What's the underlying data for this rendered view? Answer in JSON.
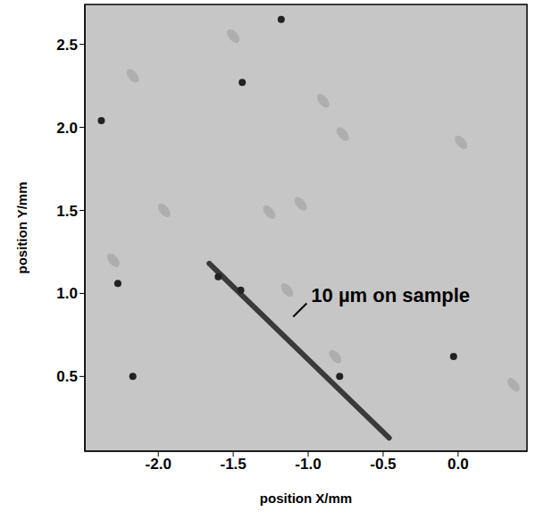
{
  "chart_data": {
    "type": "image",
    "x_label": "position X/mm",
    "y_label": "position Y/mm",
    "color": "#c6c6c6",
    "xlim": [
      -2.49,
      0.46
    ],
    "ylim": [
      0.05,
      2.74
    ],
    "xticks": [
      {
        "value": -2,
        "label": "-2.0"
      },
      {
        "value": -1.5,
        "label": "-1.5"
      },
      {
        "value": -1,
        "label": "-1.0"
      },
      {
        "value": -0.5,
        "label": "-0.5"
      },
      {
        "value": 0,
        "label": "0.0"
      }
    ],
    "yticks": [
      0.5,
      {
        "value": 1,
        "label": "1.0"
      },
      1.5,
      {
        "value": 2,
        "label": "2.0"
      },
      2.5
    ],
    "streak": {
      "x": [
        -1.66,
        -0.46
      ],
      "y": [
        1.18,
        0.13
      ]
    },
    "spots": {
      "x": [
        -2.17,
        -1.44,
        -1.18,
        -2.27,
        -0.03,
        -0.79,
        -1.6,
        -1.45,
        -2.38
      ],
      "y": [
        0.5,
        2.27,
        2.65,
        1.06,
        0.62,
        0.5,
        1.1,
        1.02,
        2.04
      ]
    },
    "faint_spots": {
      "x": [
        -2.17,
        -1.96,
        -1.5,
        -2.3,
        -1.26,
        -1.05,
        -0.9,
        -0.77,
        0.02,
        -1.14,
        -0.82,
        0.37
      ],
      "y": [
        2.31,
        1.5,
        2.55,
        1.2,
        1.49,
        1.54,
        2.16,
        1.96,
        1.91,
        1.02,
        0.62,
        0.45
      ]
    },
    "annotation": {
      "text": "10 µm on sample",
      "x": -0.98,
      "y": 0.99,
      "pointer_x": [
        -1.01,
        -1.1
      ],
      "pointer_y": [
        0.94,
        0.86
      ]
    }
  }
}
